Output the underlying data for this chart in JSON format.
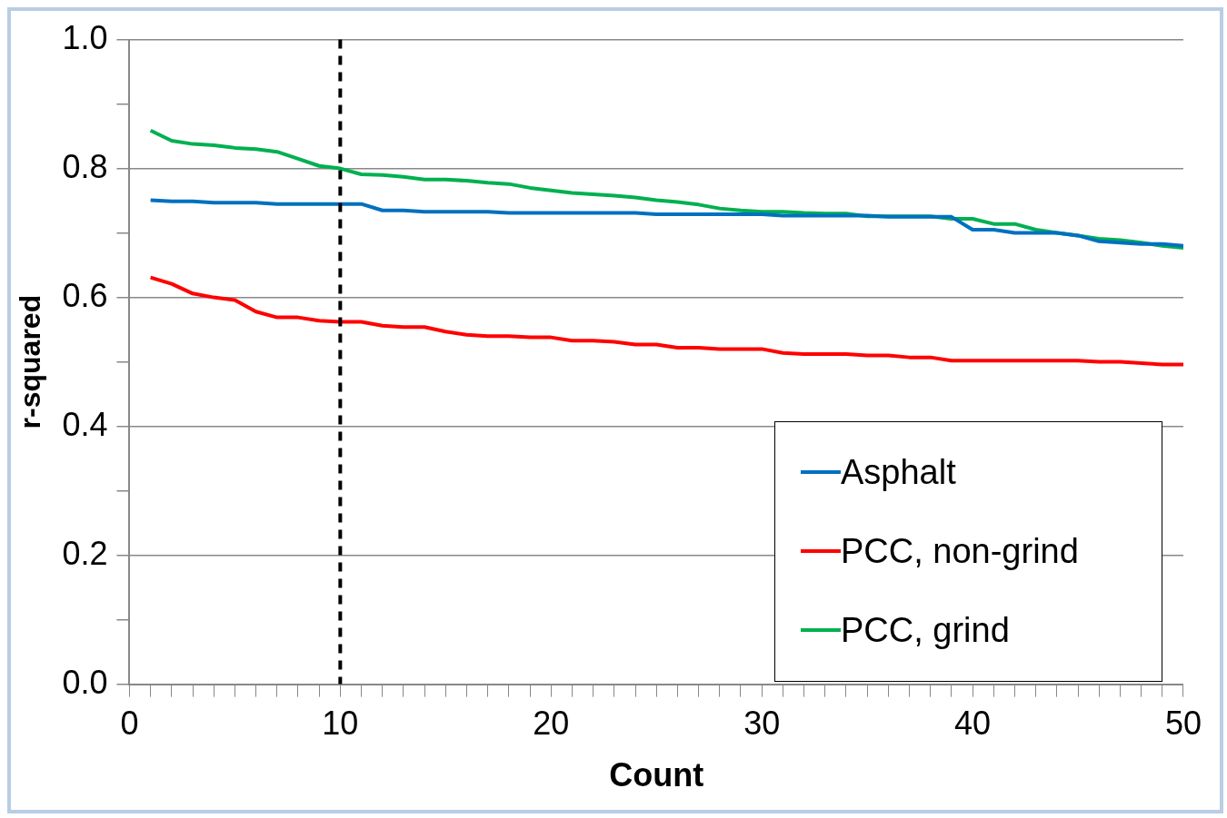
{
  "chart_data": {
    "type": "line",
    "xlabel": "Count",
    "ylabel": "r-squared",
    "x": [
      1,
      2,
      3,
      4,
      5,
      6,
      7,
      8,
      9,
      10,
      11,
      12,
      13,
      14,
      15,
      16,
      17,
      18,
      19,
      20,
      21,
      22,
      23,
      24,
      25,
      26,
      27,
      28,
      29,
      30,
      31,
      32,
      33,
      34,
      35,
      36,
      37,
      38,
      39,
      40,
      41,
      42,
      43,
      44,
      45,
      46,
      47,
      48,
      49,
      50
    ],
    "series": [
      {
        "name": "Asphalt",
        "color": "#0070c0",
        "values": [
          0.751,
          0.749,
          0.749,
          0.747,
          0.747,
          0.747,
          0.745,
          0.745,
          0.745,
          0.745,
          0.745,
          0.735,
          0.735,
          0.733,
          0.733,
          0.733,
          0.733,
          0.731,
          0.731,
          0.731,
          0.731,
          0.731,
          0.731,
          0.731,
          0.729,
          0.729,
          0.729,
          0.729,
          0.729,
          0.729,
          0.727,
          0.727,
          0.727,
          0.727,
          0.727,
          0.725,
          0.725,
          0.725,
          0.725,
          0.705,
          0.705,
          0.7,
          0.7,
          0.7,
          0.696,
          0.687,
          0.685,
          0.683,
          0.683,
          0.68
        ]
      },
      {
        "name": "PCC, non-grind",
        "color": "#ff0000",
        "values": [
          0.631,
          0.621,
          0.606,
          0.6,
          0.596,
          0.578,
          0.569,
          0.569,
          0.564,
          0.562,
          0.562,
          0.556,
          0.554,
          0.554,
          0.547,
          0.542,
          0.54,
          0.54,
          0.538,
          0.538,
          0.533,
          0.533,
          0.531,
          0.527,
          0.527,
          0.522,
          0.522,
          0.52,
          0.52,
          0.52,
          0.514,
          0.512,
          0.512,
          0.512,
          0.51,
          0.51,
          0.507,
          0.507,
          0.502,
          0.502,
          0.502,
          0.502,
          0.502,
          0.502,
          0.502,
          0.5,
          0.5,
          0.498,
          0.496,
          0.496
        ]
      },
      {
        "name": "PCC, grind",
        "color": "#00b050",
        "values": [
          0.859,
          0.843,
          0.838,
          0.836,
          0.832,
          0.83,
          0.826,
          0.815,
          0.804,
          0.8,
          0.791,
          0.79,
          0.787,
          0.783,
          0.783,
          0.781,
          0.778,
          0.776,
          0.77,
          0.766,
          0.762,
          0.76,
          0.758,
          0.755,
          0.751,
          0.748,
          0.744,
          0.738,
          0.735,
          0.733,
          0.733,
          0.731,
          0.73,
          0.73,
          0.726,
          0.726,
          0.726,
          0.726,
          0.722,
          0.722,
          0.714,
          0.714,
          0.705,
          0.7,
          0.696,
          0.691,
          0.689,
          0.685,
          0.68,
          0.677
        ]
      }
    ],
    "xlim": [
      0,
      50
    ],
    "xticks": [
      0,
      {
        "value": 1,
        "label": null
      },
      {
        "value": 2,
        "label": null
      },
      {
        "value": 3,
        "label": null
      },
      {
        "value": 4,
        "label": null
      },
      {
        "value": 5,
        "label": null
      },
      {
        "value": 6,
        "label": null
      },
      {
        "value": 7,
        "label": null
      },
      {
        "value": 8,
        "label": null
      },
      {
        "value": 9,
        "label": null
      },
      10,
      {
        "value": 11,
        "label": null
      },
      {
        "value": 12,
        "label": null
      },
      {
        "value": 13,
        "label": null
      },
      {
        "value": 14,
        "label": null
      },
      {
        "value": 15,
        "label": null
      },
      {
        "value": 16,
        "label": null
      },
      {
        "value": 17,
        "label": null
      },
      {
        "value": 18,
        "label": null
      },
      {
        "value": 19,
        "label": null
      },
      20,
      {
        "value": 21,
        "label": null
      },
      {
        "value": 22,
        "label": null
      },
      {
        "value": 23,
        "label": null
      },
      {
        "value": 24,
        "label": null
      },
      {
        "value": 25,
        "label": null
      },
      {
        "value": 26,
        "label": null
      },
      {
        "value": 27,
        "label": null
      },
      {
        "value": 28,
        "label": null
      },
      {
        "value": 29,
        "label": null
      },
      30,
      {
        "value": 31,
        "label": null
      },
      {
        "value": 32,
        "label": null
      },
      {
        "value": 33,
        "label": null
      },
      {
        "value": 34,
        "label": null
      },
      {
        "value": 35,
        "label": null
      },
      {
        "value": 36,
        "label": null
      },
      {
        "value": 37,
        "label": null
      },
      {
        "value": 38,
        "label": null
      },
      {
        "value": 39,
        "label": null
      },
      40,
      {
        "value": 41,
        "label": null
      },
      {
        "value": 42,
        "label": null
      },
      {
        "value": 43,
        "label": null
      },
      {
        "value": 44,
        "label": null
      },
      {
        "value": 45,
        "label": null
      },
      {
        "value": 46,
        "label": null
      },
      {
        "value": 47,
        "label": null
      },
      {
        "value": 48,
        "label": null
      },
      {
        "value": 49,
        "label": null
      },
      50
    ],
    "ylim": [
      0,
      1
    ],
    "yticks": [
      {
        "value": 0,
        "label": "0.0"
      },
      {
        "value": 0.1,
        "label": null
      },
      {
        "value": 0.2,
        "label": "0.2"
      },
      {
        "value": 0.3,
        "label": null
      },
      {
        "value": 0.4,
        "label": "0.4"
      },
      {
        "value": 0.5,
        "label": null
      },
      {
        "value": 0.6,
        "label": "0.6"
      },
      {
        "value": 0.7,
        "label": null
      },
      {
        "value": 0.8,
        "label": "0.8"
      },
      {
        "value": 0.9,
        "label": null
      },
      {
        "value": 1,
        "label": "1.0"
      }
    ],
    "grid": "y",
    "legend": "bottom right",
    "marker": "none",
    "line_style": "solid",
    "ref_lines": [
      {
        "axis": "x",
        "value": 10,
        "color": "#000000",
        "line_style": "dashed"
      }
    ]
  }
}
